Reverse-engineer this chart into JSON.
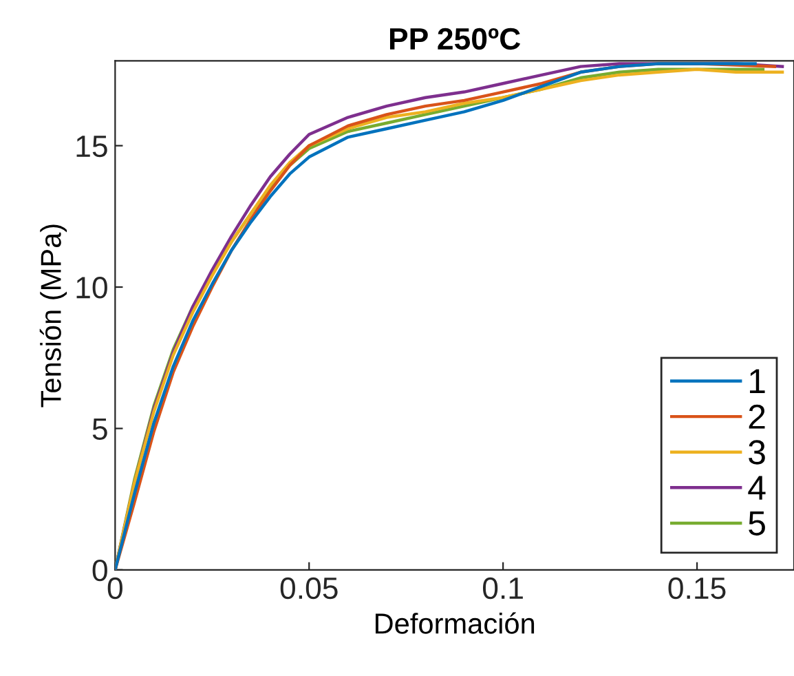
{
  "chart_data": {
    "type": "line",
    "title": "PP 250ºC",
    "xlabel": "Deformación",
    "ylabel": "Tensión (MPa)",
    "xlim": [
      0,
      0.175
    ],
    "ylim": [
      0,
      18
    ],
    "xticks": [
      0,
      0.05,
      0.1,
      0.15
    ],
    "yticks": [
      0,
      5,
      10,
      15
    ],
    "grid": false,
    "legend": "bottom right",
    "line_style": "solid",
    "marker": "none",
    "series": [
      {
        "name": "1",
        "color": "#0072bd",
        "x": [
          0,
          0.005,
          0.01,
          0.015,
          0.02,
          0.025,
          0.03,
          0.035,
          0.04,
          0.045,
          0.05,
          0.06,
          0.07,
          0.08,
          0.09,
          0.1,
          0.11,
          0.12,
          0.13,
          0.14,
          0.15,
          0.165
        ],
        "values": [
          0,
          2.7,
          5.2,
          7.2,
          8.8,
          10.1,
          11.3,
          12.3,
          13.2,
          14,
          14.6,
          15.3,
          15.6,
          15.9,
          16.2,
          16.6,
          17.1,
          17.6,
          17.8,
          17.9,
          17.9,
          17.9
        ]
      },
      {
        "name": "2",
        "color": "#d95319",
        "x": [
          0,
          0.005,
          0.01,
          0.015,
          0.02,
          0.025,
          0.03,
          0.035,
          0.04,
          0.045,
          0.05,
          0.06,
          0.07,
          0.08,
          0.09,
          0.1,
          0.11,
          0.12,
          0.13,
          0.14,
          0.15,
          0.17
        ],
        "values": [
          0,
          2.4,
          4.9,
          7,
          8.6,
          10,
          11.3,
          12.4,
          13.4,
          14.3,
          15,
          15.7,
          16.1,
          16.4,
          16.6,
          16.9,
          17.2,
          17.6,
          17.8,
          17.9,
          17.9,
          17.8
        ]
      },
      {
        "name": "3",
        "color": "#edb120",
        "x": [
          0,
          0.005,
          0.01,
          0.015,
          0.02,
          0.025,
          0.03,
          0.035,
          0.04,
          0.045,
          0.05,
          0.06,
          0.07,
          0.08,
          0.09,
          0.1,
          0.11,
          0.12,
          0.13,
          0.14,
          0.15,
          0.16,
          0.172
        ],
        "values": [
          0,
          3.1,
          5.6,
          7.6,
          9.1,
          10.4,
          11.6,
          12.6,
          13.6,
          14.4,
          15,
          15.6,
          16,
          16.2,
          16.5,
          16.7,
          17,
          17.3,
          17.5,
          17.6,
          17.7,
          17.6,
          17.6
        ]
      },
      {
        "name": "4",
        "color": "#7e2f8e",
        "x": [
          0,
          0.005,
          0.01,
          0.015,
          0.02,
          0.025,
          0.03,
          0.035,
          0.04,
          0.045,
          0.05,
          0.06,
          0.07,
          0.08,
          0.09,
          0.1,
          0.11,
          0.12,
          0.13,
          0.14,
          0.15,
          0.16,
          0.172
        ],
        "values": [
          0,
          3.1,
          5.7,
          7.7,
          9.3,
          10.6,
          11.8,
          12.9,
          13.9,
          14.7,
          15.4,
          16,
          16.4,
          16.7,
          16.9,
          17.2,
          17.5,
          17.8,
          17.9,
          17.9,
          17.9,
          17.9,
          17.8
        ]
      },
      {
        "name": "5",
        "color": "#77ac30",
        "x": [
          0,
          0.005,
          0.01,
          0.015,
          0.02,
          0.025,
          0.03,
          0.035,
          0.04,
          0.045,
          0.05,
          0.06,
          0.07,
          0.08,
          0.09,
          0.1,
          0.11,
          0.12,
          0.13,
          0.14,
          0.15,
          0.167
        ],
        "values": [
          0,
          3.2,
          5.8,
          7.8,
          9.3,
          10.5,
          11.6,
          12.6,
          13.5,
          14.3,
          14.9,
          15.5,
          15.8,
          16.1,
          16.4,
          16.7,
          17,
          17.4,
          17.6,
          17.7,
          17.7,
          17.7
        ]
      }
    ]
  }
}
